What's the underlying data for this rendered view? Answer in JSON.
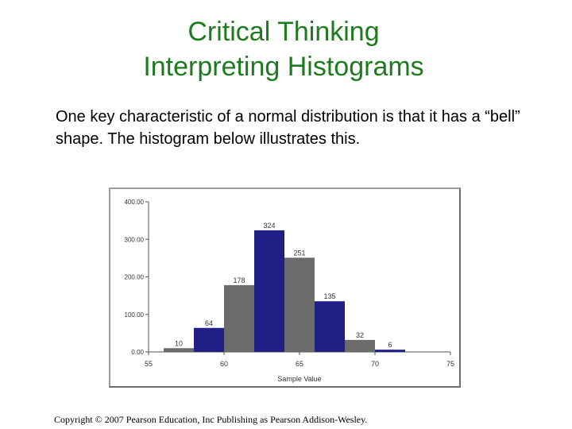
{
  "slide": {
    "title_line1": "Critical Thinking",
    "title_line2": "Interpreting Histograms",
    "body": "One key characteristic of a normal distribution is that it has a “bell” shape. The histogram below illustrates this.",
    "copyright": "Copyright © 2007 Pearson Education, Inc Publishing as Pearson Addison-Wesley."
  },
  "chart_data": {
    "type": "bar",
    "xlabel": "Sample Value",
    "ylabel": "",
    "xlim": [
      55,
      75
    ],
    "ylim": [
      0,
      400
    ],
    "x_ticks": [
      "55",
      "60",
      "65",
      "70",
      "75"
    ],
    "y_ticks": [
      "0.00",
      "100.00",
      "200.00",
      "300.00",
      "400.00"
    ],
    "bins": [
      {
        "start": 56,
        "end": 58,
        "value": 10,
        "label": "10",
        "color": "#6b6b6b"
      },
      {
        "start": 58,
        "end": 60,
        "value": 64,
        "label": "64",
        "color": "#1f1f85"
      },
      {
        "start": 60,
        "end": 62,
        "value": 178,
        "label": "178",
        "color": "#6b6b6b"
      },
      {
        "start": 62,
        "end": 64,
        "value": 324,
        "label": "324",
        "color": "#1f1f85"
      },
      {
        "start": 64,
        "end": 66,
        "value": 251,
        "label": "251",
        "color": "#6b6b6b"
      },
      {
        "start": 66,
        "end": 68,
        "value": 135,
        "label": "135",
        "color": "#1f1f85"
      },
      {
        "start": 68,
        "end": 70,
        "value": 32,
        "label": "32",
        "color": "#6b6b6b"
      },
      {
        "start": 70,
        "end": 72,
        "value": 6,
        "label": "6",
        "color": "#1f1f85"
      }
    ],
    "grid": false,
    "legend": "none"
  }
}
